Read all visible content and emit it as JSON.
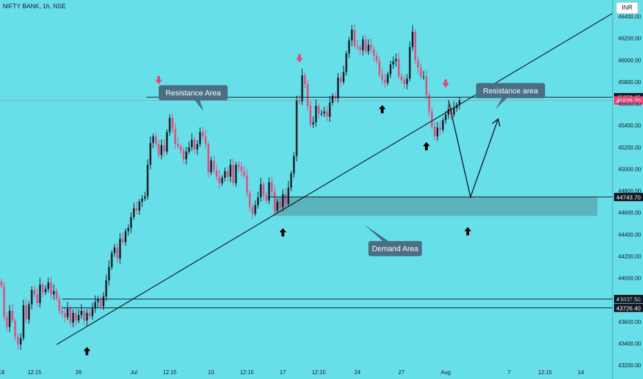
{
  "header": {
    "title": "NIFTY BANK, 1h, NSE",
    "currency": "INR"
  },
  "colors": {
    "background": "#67dfe9",
    "up": "#131722",
    "down": "#e84678",
    "demand_zone": "#5aaeb8",
    "callout_bg": "#4a6f84",
    "marker_red": "#e84678",
    "marker_black": "#000000"
  },
  "chart_data": {
    "type": "candlestick",
    "title": "NIFTY BANK, 1h, NSE",
    "xlabel": "",
    "ylabel": "",
    "ylim": [
      43200,
      46400
    ],
    "y_ticks": [
      43200,
      43400,
      43600,
      43800,
      44000,
      44200,
      44400,
      44600,
      44800,
      45000,
      45200,
      45400,
      45600,
      45800,
      46000,
      46200,
      46400
    ],
    "y_tick_labels": [
      "43200.00",
      "43400.00",
      "43600.00",
      "43800.00",
      "44000.00",
      "44200.00",
      "44400.00",
      "44600.00",
      "44800.00",
      "45000.00",
      "45200.00",
      "45400.00",
      "45600.00",
      "45800.00",
      "46000.00",
      "46200.00",
      "46400.00"
    ],
    "x_tick_labels": [
      "19",
      "12:15",
      "26",
      "Jul",
      "12:15",
      "10",
      "12:15",
      "17",
      "12:15",
      "24",
      "27",
      "Aug",
      "7",
      "12:15",
      "14"
    ],
    "x_tick_index": [
      0,
      12,
      28,
      48,
      61,
      76,
      89,
      102,
      115,
      129,
      145,
      161,
      184,
      197,
      210
    ],
    "total_slots": 222,
    "price_levels": [
      {
        "label": "45659.65",
        "value": 45659.65,
        "style": "line"
      },
      {
        "label": "45629.70",
        "value": 45629.7,
        "style": "last"
      },
      {
        "label": "44743.70",
        "value": 44743.7,
        "style": "line"
      },
      {
        "label": "43807.50",
        "value": 43807.5,
        "style": "line"
      },
      {
        "label": "43726.40",
        "value": 43726.4,
        "style": "line"
      }
    ],
    "trendline": {
      "start": {
        "index": 20,
        "value": 43390
      },
      "end": {
        "index": 230,
        "value": 46430
      }
    },
    "demand_zone": {
      "from_index": 99,
      "to_index": 216,
      "low": 44570,
      "high": 44743.7
    },
    "projection": [
      {
        "index": 162,
        "value": 45629.7
      },
      {
        "index": 170,
        "value": 44743.7
      },
      {
        "index": 180,
        "value": 45460
      }
    ],
    "annotations": [
      {
        "text": "Resistance Area",
        "index": 57,
        "value": 45770
      },
      {
        "text": "Resistance area",
        "index": 172,
        "value": 45790
      },
      {
        "text": "Demand Area",
        "index": 133,
        "value": 44340
      }
    ],
    "markers": [
      {
        "type": "down-red",
        "index": 57,
        "value": 45790
      },
      {
        "type": "down-red",
        "index": 108,
        "value": 45990
      },
      {
        "type": "down-red",
        "index": 161,
        "value": 45760
      },
      {
        "type": "up-black",
        "index": 31,
        "value": 43330
      },
      {
        "type": "up-black",
        "index": 102,
        "value": 44420
      },
      {
        "type": "up-black",
        "index": 138,
        "value": 45550
      },
      {
        "type": "up-black",
        "index": 154,
        "value": 45210
      },
      {
        "type": "up-black",
        "index": 169,
        "value": 44430
      }
    ],
    "closes": [
      43930,
      43640,
      43550,
      43700,
      43610,
      43460,
      43390,
      43450,
      43750,
      43620,
      43760,
      43890,
      43850,
      43770,
      43940,
      43870,
      43900,
      43960,
      43850,
      43880,
      43810,
      43700,
      43680,
      43640,
      43720,
      43590,
      43680,
      43610,
      43660,
      43700,
      43610,
      43680,
      43650,
      43720,
      43780,
      43810,
      43740,
      43830,
      43980,
      44100,
      44230,
      44280,
      44180,
      44360,
      44330,
      44430,
      44460,
      44560,
      44640,
      44620,
      44700,
      44730,
      44750,
      45040,
      45240,
      45300,
      45230,
      45130,
      45220,
      45160,
      45340,
      45470,
      45370,
      45230,
      45210,
      45170,
      45090,
      45160,
      45200,
      45270,
      45180,
      45230,
      45340,
      45300,
      45230,
      44970,
      45080,
      44990,
      44930,
      44870,
      44920,
      44980,
      44930,
      45040,
      44870,
      45040,
      45020,
      44980,
      44940,
      44780,
      44650,
      44590,
      44670,
      44740,
      44860,
      44760,
      44710,
      44880,
      44790,
      44620,
      44700,
      44650,
      44770,
      44680,
      44830,
      44960,
      45120,
      45630,
      45620,
      45860,
      45780,
      45580,
      45410,
      45430,
      45580,
      45510,
      45510,
      45530,
      45480,
      45610,
      45670,
      45650,
      45840,
      45800,
      45890,
      46060,
      46180,
      46280,
      46130,
      46120,
      46090,
      46190,
      46080,
      46140,
      46100,
      46040,
      45990,
      45870,
      45820,
      45790,
      45870,
      45960,
      45990,
      46010,
      45850,
      45820,
      45780,
      45830,
      46120,
      46260,
      46000,
      45930,
      45850,
      45850,
      45680,
      45530,
      45390,
      45300,
      45380,
      45360,
      45450,
      45500,
      45550,
      45500,
      45560,
      45590,
      45629.7
    ]
  }
}
